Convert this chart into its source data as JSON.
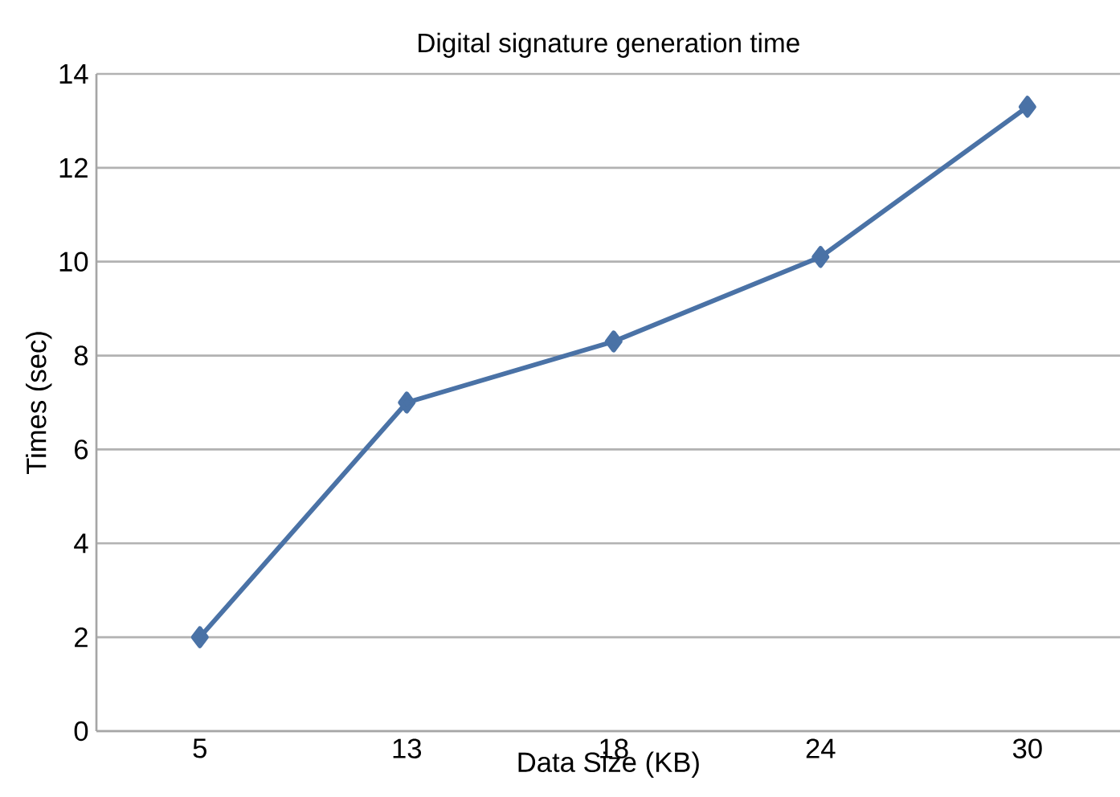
{
  "chart_data": {
    "type": "line",
    "title": "Digital signature generation time",
    "xlabel": "Data Size (KB)",
    "ylabel": "Times (sec)",
    "categories": [
      "5",
      "13",
      "18",
      "24",
      "30"
    ],
    "series": [
      {
        "color": "#4a72a6",
        "values": [
          2,
          7,
          8.3,
          10.1,
          13.3
        ]
      }
    ],
    "ylim": [
      0,
      14
    ],
    "yticks": [
      0,
      2,
      4,
      6,
      8,
      10,
      12,
      14
    ],
    "grid": "y",
    "marker": "diamond",
    "line_style": "solid"
  }
}
